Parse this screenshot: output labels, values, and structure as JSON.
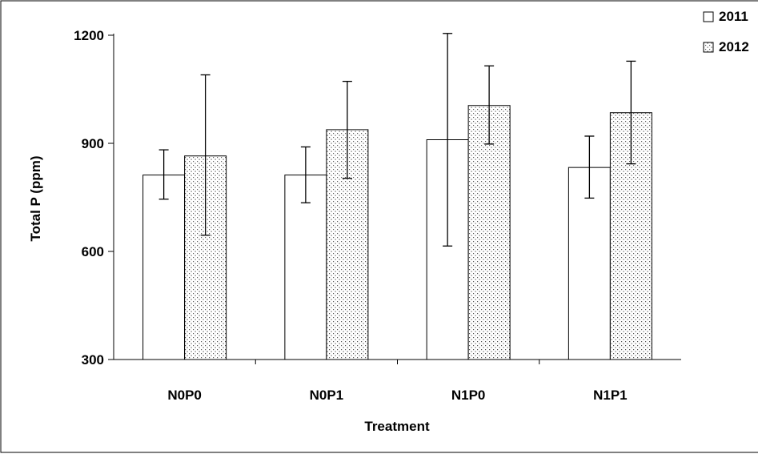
{
  "chart_data": {
    "type": "bar",
    "title": "",
    "xlabel": "Treatment",
    "ylabel": "Total P (ppm)",
    "categories": [
      "N0P0",
      "N0P1",
      "N1P0",
      "N1P1"
    ],
    "ylim": [
      300,
      1200
    ],
    "yticks": [
      300,
      600,
      900,
      1200
    ],
    "ytick_labels": [
      "300",
      "600",
      "900",
      "1200"
    ],
    "grid": false,
    "legend_position": "top-right",
    "series": [
      {
        "name": "2011",
        "pattern": "open",
        "fill": "#ffffff",
        "values": [
          812,
          812,
          910,
          833
        ],
        "err_low": [
          745,
          735,
          615,
          748
        ],
        "err_high": [
          882,
          890,
          1205,
          920
        ]
      },
      {
        "name": "2012",
        "pattern": "dotted",
        "fill": "#ffffff",
        "values": [
          865,
          938,
          1005,
          985
        ],
        "err_low": [
          645,
          803,
          898,
          843
        ],
        "err_high": [
          1090,
          1072,
          1115,
          1128
        ]
      }
    ]
  }
}
